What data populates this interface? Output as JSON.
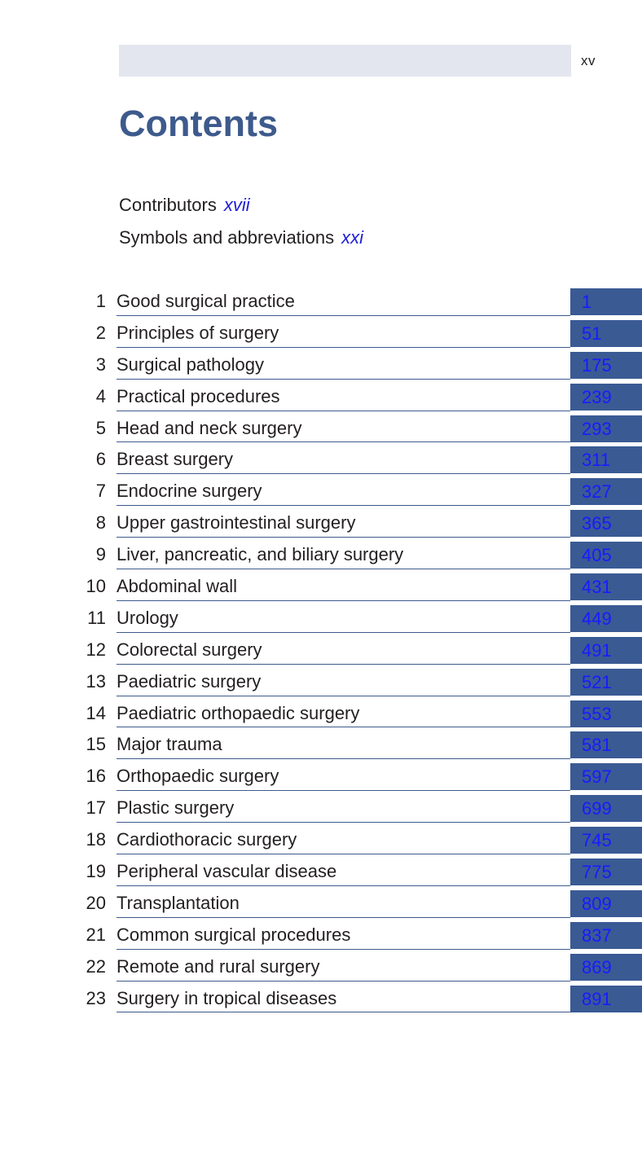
{
  "header": {
    "page_number": "xv"
  },
  "title": "Contents",
  "front_matter": [
    {
      "label": "Contributors",
      "page": "xvii"
    },
    {
      "label": "Symbols and abbreviations",
      "page": "xxi"
    }
  ],
  "chapters": [
    {
      "number": "1",
      "title": "Good surgical practice",
      "page": "1"
    },
    {
      "number": "2",
      "title": "Principles of surgery",
      "page": "51"
    },
    {
      "number": "3",
      "title": "Surgical pathology",
      "page": "175"
    },
    {
      "number": "4",
      "title": "Practical procedures",
      "page": "239"
    },
    {
      "number": "5",
      "title": "Head and neck surgery",
      "page": "293"
    },
    {
      "number": "6",
      "title": "Breast surgery",
      "page": "311"
    },
    {
      "number": "7",
      "title": "Endocrine surgery",
      "page": "327"
    },
    {
      "number": "8",
      "title": "Upper gastrointestinal surgery",
      "page": "365"
    },
    {
      "number": "9",
      "title": "Liver, pancreatic, and biliary surgery",
      "page": "405"
    },
    {
      "number": "10",
      "title": "Abdominal wall",
      "page": "431"
    },
    {
      "number": "11",
      "title": "Urology",
      "page": "449"
    },
    {
      "number": "12",
      "title": "Colorectal surgery",
      "page": "491"
    },
    {
      "number": "13",
      "title": "Paediatric surgery",
      "page": "521"
    },
    {
      "number": "14",
      "title": "Paediatric orthopaedic surgery",
      "page": "553"
    },
    {
      "number": "15",
      "title": "Major trauma",
      "page": "581"
    },
    {
      "number": "16",
      "title": "Orthopaedic surgery",
      "page": "597"
    },
    {
      "number": "17",
      "title": "Plastic surgery",
      "page": "699"
    },
    {
      "number": "18",
      "title": "Cardiothoracic surgery",
      "page": "745"
    },
    {
      "number": "19",
      "title": "Peripheral vascular disease",
      "page": "775"
    },
    {
      "number": "20",
      "title": "Transplantation",
      "page": "809"
    },
    {
      "number": "21",
      "title": "Common surgical procedures",
      "page": "837"
    },
    {
      "number": "22",
      "title": "Remote and rural surgery",
      "page": "869"
    },
    {
      "number": "23",
      "title": "Surgery in tropical diseases",
      "page": "891"
    }
  ]
}
